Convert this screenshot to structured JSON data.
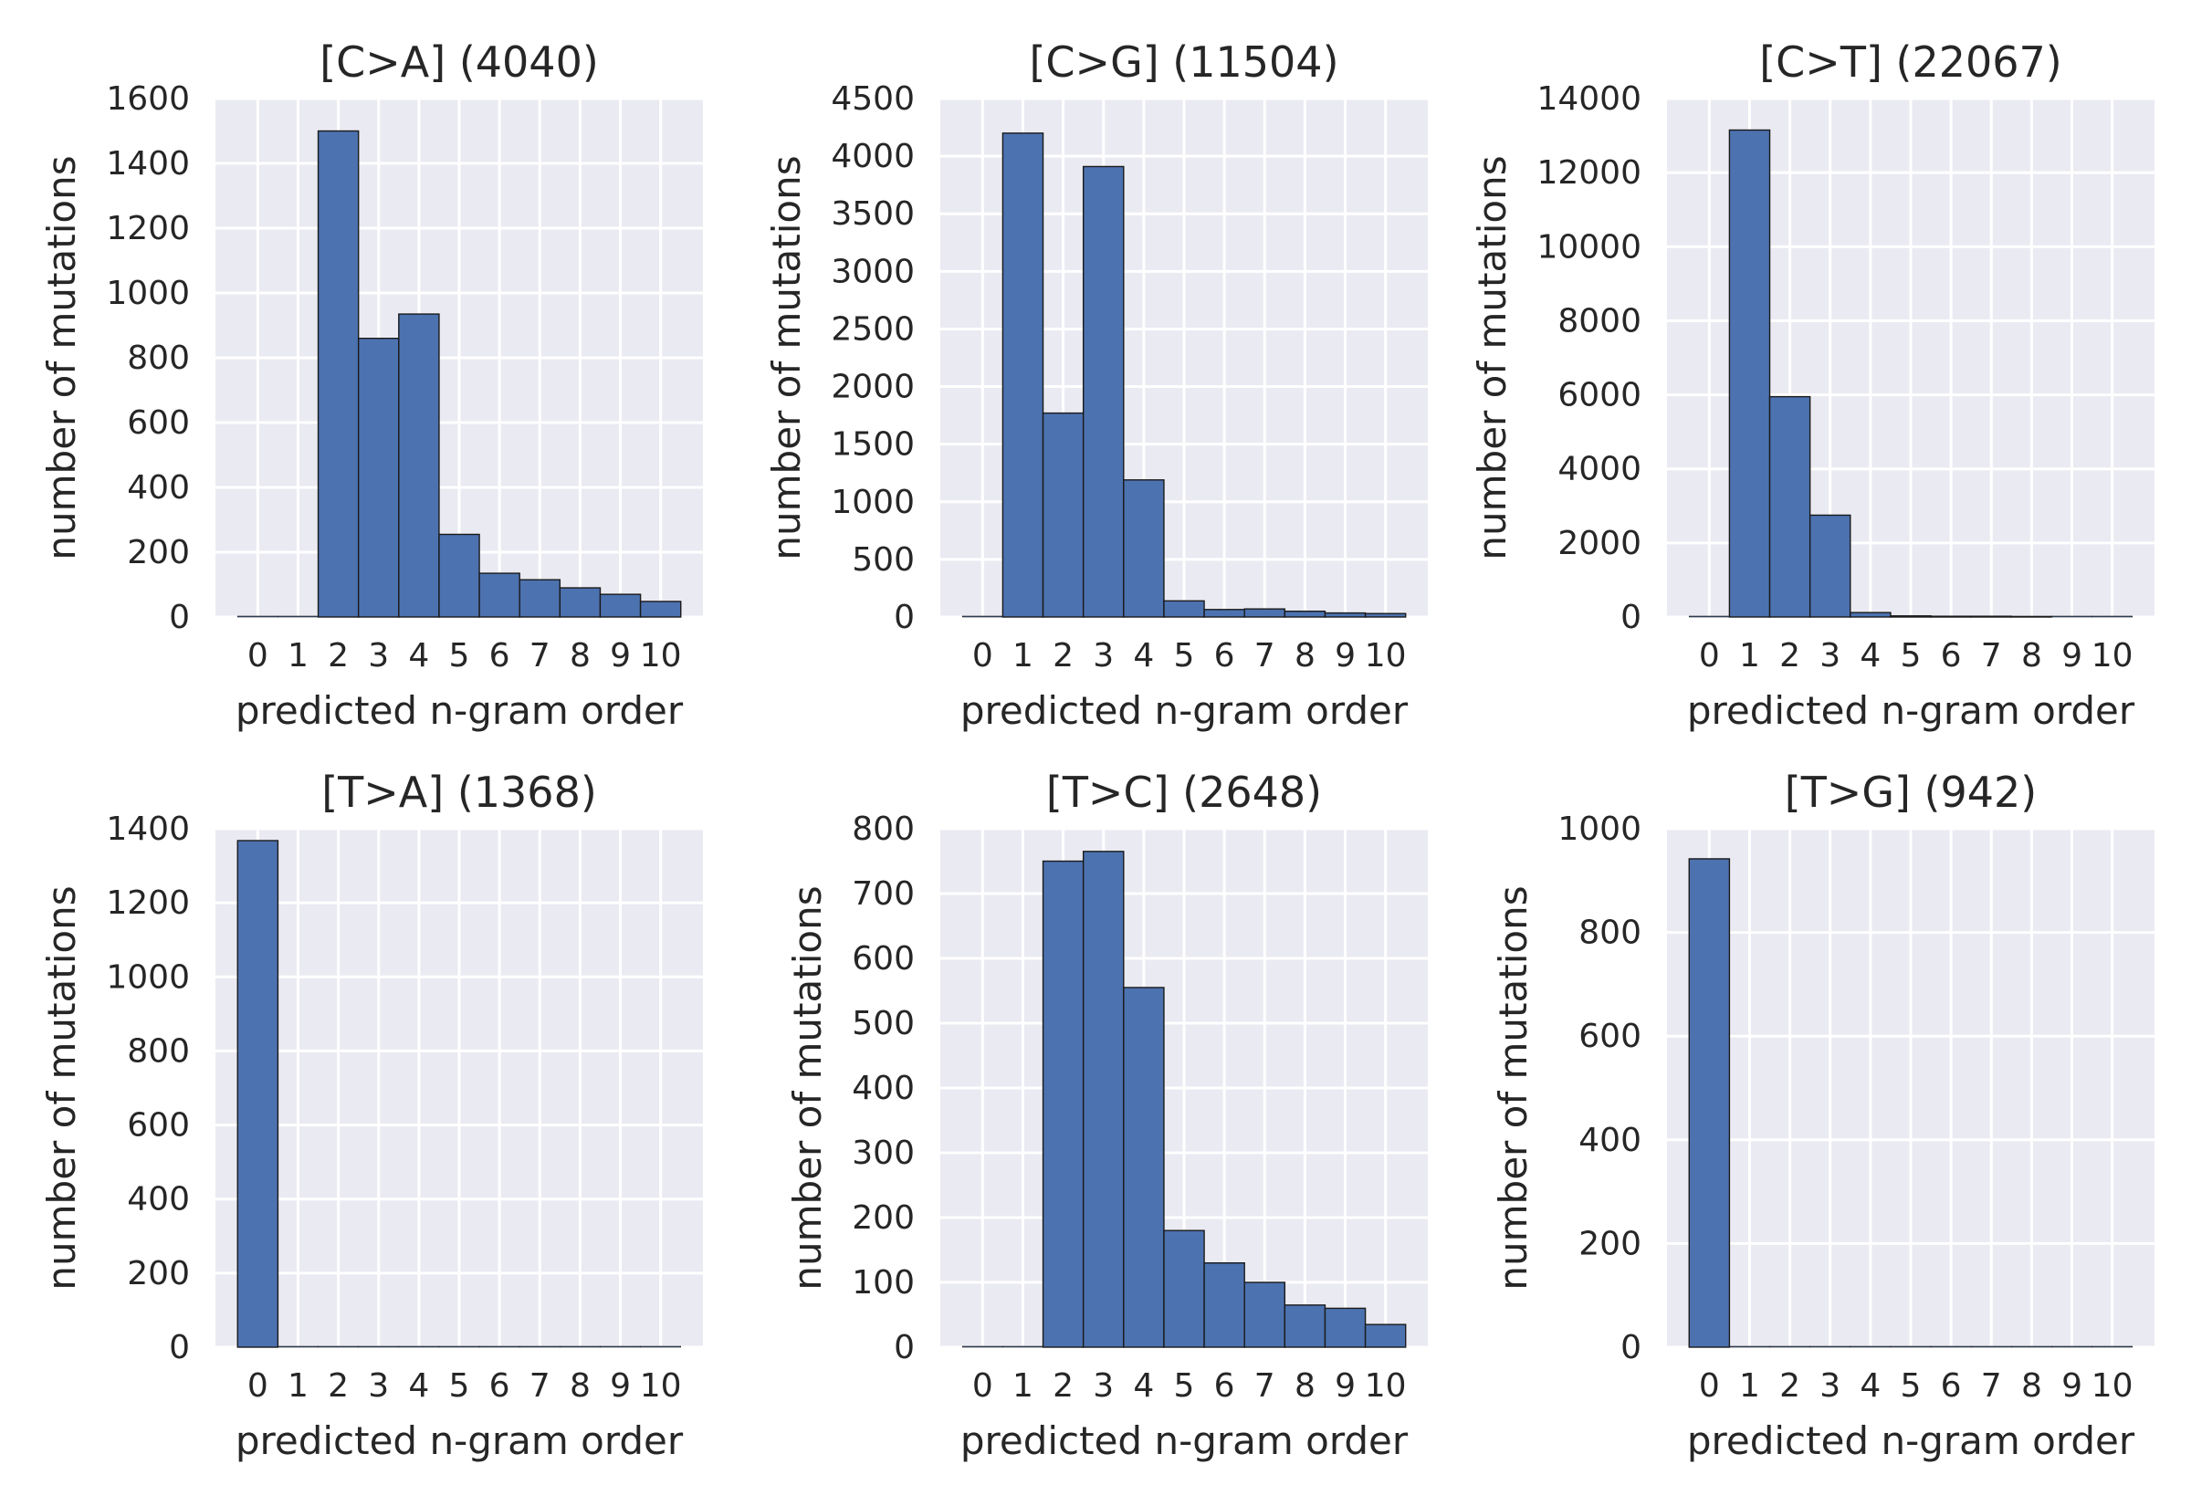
{
  "colors": {
    "bar": "#4c72b0",
    "bar_edge": "#1a1a1a",
    "plot_bg": "#eaeaf2",
    "grid": "#ffffff"
  },
  "chart_data": [
    {
      "type": "bar",
      "title": "[C>A] (4040)",
      "xlabel": "predicted n-gram order",
      "ylabel": "number of mutations",
      "categories": [
        "0",
        "1",
        "2",
        "3",
        "4",
        "5",
        "6",
        "7",
        "8",
        "9",
        "10"
      ],
      "values": [
        0,
        0,
        1500,
        860,
        935,
        255,
        135,
        115,
        90,
        70,
        48
      ],
      "ylim": [
        0,
        1600
      ],
      "yticks": [
        0,
        200,
        400,
        600,
        800,
        1000,
        1200,
        1400,
        1600
      ],
      "grid": true
    },
    {
      "type": "bar",
      "title": "[C>G] (11504)",
      "xlabel": "predicted n-gram order",
      "ylabel": "number of mutations",
      "categories": [
        "0",
        "1",
        "2",
        "3",
        "4",
        "5",
        "6",
        "7",
        "8",
        "9",
        "10"
      ],
      "values": [
        0,
        4200,
        1770,
        3910,
        1190,
        140,
        65,
        70,
        50,
        35,
        30
      ],
      "ylim": [
        0,
        4500
      ],
      "yticks": [
        0,
        500,
        1000,
        1500,
        2000,
        2500,
        3000,
        3500,
        4000,
        4500
      ],
      "grid": true
    },
    {
      "type": "bar",
      "title": "[C>T] (22067)",
      "xlabel": "predicted n-gram order",
      "ylabel": "number of mutations",
      "categories": [
        "0",
        "1",
        "2",
        "3",
        "4",
        "5",
        "6",
        "7",
        "8",
        "9",
        "10"
      ],
      "values": [
        0,
        13150,
        5950,
        2750,
        120,
        30,
        20,
        20,
        15,
        0,
        0
      ],
      "ylim": [
        0,
        14000
      ],
      "yticks": [
        0,
        2000,
        4000,
        6000,
        8000,
        10000,
        12000,
        14000
      ],
      "grid": true
    },
    {
      "type": "bar",
      "title": "[T>A] (1368)",
      "xlabel": "predicted n-gram order",
      "ylabel": "number of mutations",
      "categories": [
        "0",
        "1",
        "2",
        "3",
        "4",
        "5",
        "6",
        "7",
        "8",
        "9",
        "10"
      ],
      "values": [
        1368,
        0,
        0,
        0,
        0,
        0,
        0,
        0,
        0,
        0,
        0
      ],
      "ylim": [
        0,
        1400
      ],
      "yticks": [
        0,
        200,
        400,
        600,
        800,
        1000,
        1200,
        1400
      ],
      "grid": true
    },
    {
      "type": "bar",
      "title": "[T>C] (2648)",
      "xlabel": "predicted n-gram order",
      "ylabel": "number of mutations",
      "categories": [
        "0",
        "1",
        "2",
        "3",
        "4",
        "5",
        "6",
        "7",
        "8",
        "9",
        "10"
      ],
      "values": [
        0,
        0,
        750,
        765,
        555,
        180,
        130,
        100,
        65,
        60,
        35
      ],
      "ylim": [
        0,
        800
      ],
      "yticks": [
        0,
        100,
        200,
        300,
        400,
        500,
        600,
        700,
        800
      ],
      "grid": true
    },
    {
      "type": "bar",
      "title": "[T>G] (942)",
      "xlabel": "predicted n-gram order",
      "ylabel": "number of mutations",
      "categories": [
        "0",
        "1",
        "2",
        "3",
        "4",
        "5",
        "6",
        "7",
        "8",
        "9",
        "10"
      ],
      "values": [
        942,
        0,
        0,
        0,
        0,
        0,
        0,
        0,
        0,
        0,
        0
      ],
      "ylim": [
        0,
        1000
      ],
      "yticks": [
        0,
        200,
        400,
        600,
        800,
        1000
      ],
      "grid": true
    }
  ]
}
